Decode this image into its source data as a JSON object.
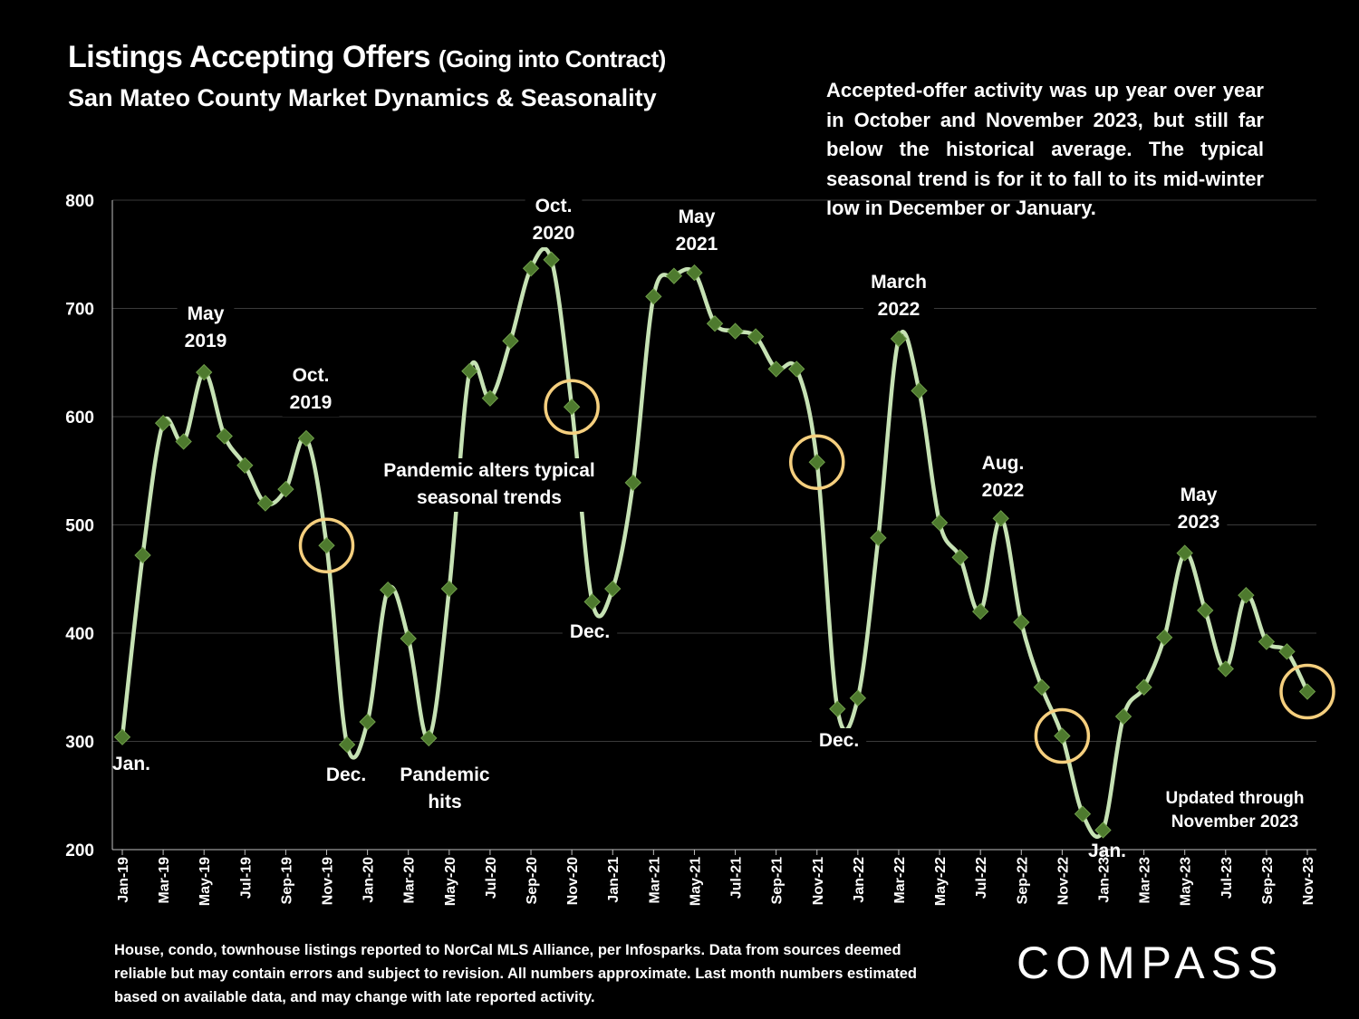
{
  "header": {
    "title_main": "Listings Accepting Offers",
    "title_paren": "(Going into Contract)",
    "subtitle": "San Mateo County Market Dynamics & Seasonality"
  },
  "note": "Accepted-offer activity was up year over year in October and November 2023, but still far below the historical average. The typical seasonal trend is for it to fall to its mid-winter low in December or January.",
  "footer": "House, condo, townhouse listings reported to NorCal MLS Alliance, per Infosparks. Data from sources deemed reliable but may contain errors and subject to revision. All numbers approximate. Last month numbers estimated based on available data, and may change with late reported activity.",
  "logo": "COMPASS",
  "colors": {
    "line": "#c6e2b4",
    "marker": "#4e7a2e",
    "circle": "#f5cf7e",
    "grid": "#3a3a3a"
  },
  "chart_data": {
    "type": "line",
    "title": "Listings Accepting Offers",
    "ylim": [
      200,
      800
    ],
    "yticks": [
      200,
      300,
      400,
      500,
      600,
      700,
      800
    ],
    "x_labels": [
      "Jan-19",
      "Mar-19",
      "May-19",
      "Jul-19",
      "Sep-19",
      "Nov-19",
      "Jan-20",
      "Mar-20",
      "May-20",
      "Jul-20",
      "Sep-20",
      "Nov-20",
      "Jan-21",
      "Mar-21",
      "May-21",
      "Jul-21",
      "Sep-21",
      "Nov-21",
      "Jan-22",
      "Mar-22",
      "May-22",
      "Jul-22",
      "Sep-22",
      "Nov-22",
      "Jan-23",
      "Mar-23",
      "May-23",
      "Jul-23",
      "Sep-23",
      "Nov-23"
    ],
    "series": [
      {
        "name": "Listings Accepting Offers",
        "values": [
          304,
          472,
          594,
          577,
          641,
          582,
          555,
          520,
          533,
          580,
          481,
          297,
          318,
          440,
          395,
          303,
          441,
          642,
          617,
          670,
          737,
          745,
          609,
          429,
          441,
          539,
          711,
          730,
          733,
          686,
          679,
          674,
          644,
          644,
          558,
          330,
          340,
          488,
          672,
          624,
          502,
          470,
          420,
          506,
          410,
          350,
          305,
          233,
          218,
          323,
          350,
          396,
          474,
          421,
          367,
          435,
          392,
          383,
          346
        ]
      }
    ],
    "circled_points": [
      10,
      22,
      34,
      46,
      58
    ],
    "annotations": [
      {
        "id": "jan19",
        "lines": [
          "Jan."
        ]
      },
      {
        "id": "may19",
        "lines": [
          "May",
          "2019"
        ]
      },
      {
        "id": "oct19",
        "lines": [
          "Oct.",
          "2019"
        ]
      },
      {
        "id": "dec19",
        "lines": [
          "Dec."
        ]
      },
      {
        "id": "pandemic",
        "lines": [
          "Pandemic",
          "hits"
        ]
      },
      {
        "id": "alters",
        "lines": [
          "Pandemic alters typical",
          "seasonal trends"
        ]
      },
      {
        "id": "oct20",
        "lines": [
          "Oct.",
          "2020"
        ]
      },
      {
        "id": "dec20",
        "lines": [
          "Dec."
        ]
      },
      {
        "id": "may21",
        "lines": [
          "May",
          "2021"
        ]
      },
      {
        "id": "dec21",
        "lines": [
          "Dec."
        ]
      },
      {
        "id": "mar22",
        "lines": [
          "March",
          "2022"
        ]
      },
      {
        "id": "aug22",
        "lines": [
          "Aug.",
          "2022"
        ]
      },
      {
        "id": "jan23",
        "lines": [
          "Jan."
        ]
      },
      {
        "id": "may23",
        "lines": [
          "May",
          "2023"
        ]
      },
      {
        "id": "updated",
        "lines": [
          "Updated through",
          "November 2023"
        ]
      }
    ]
  }
}
